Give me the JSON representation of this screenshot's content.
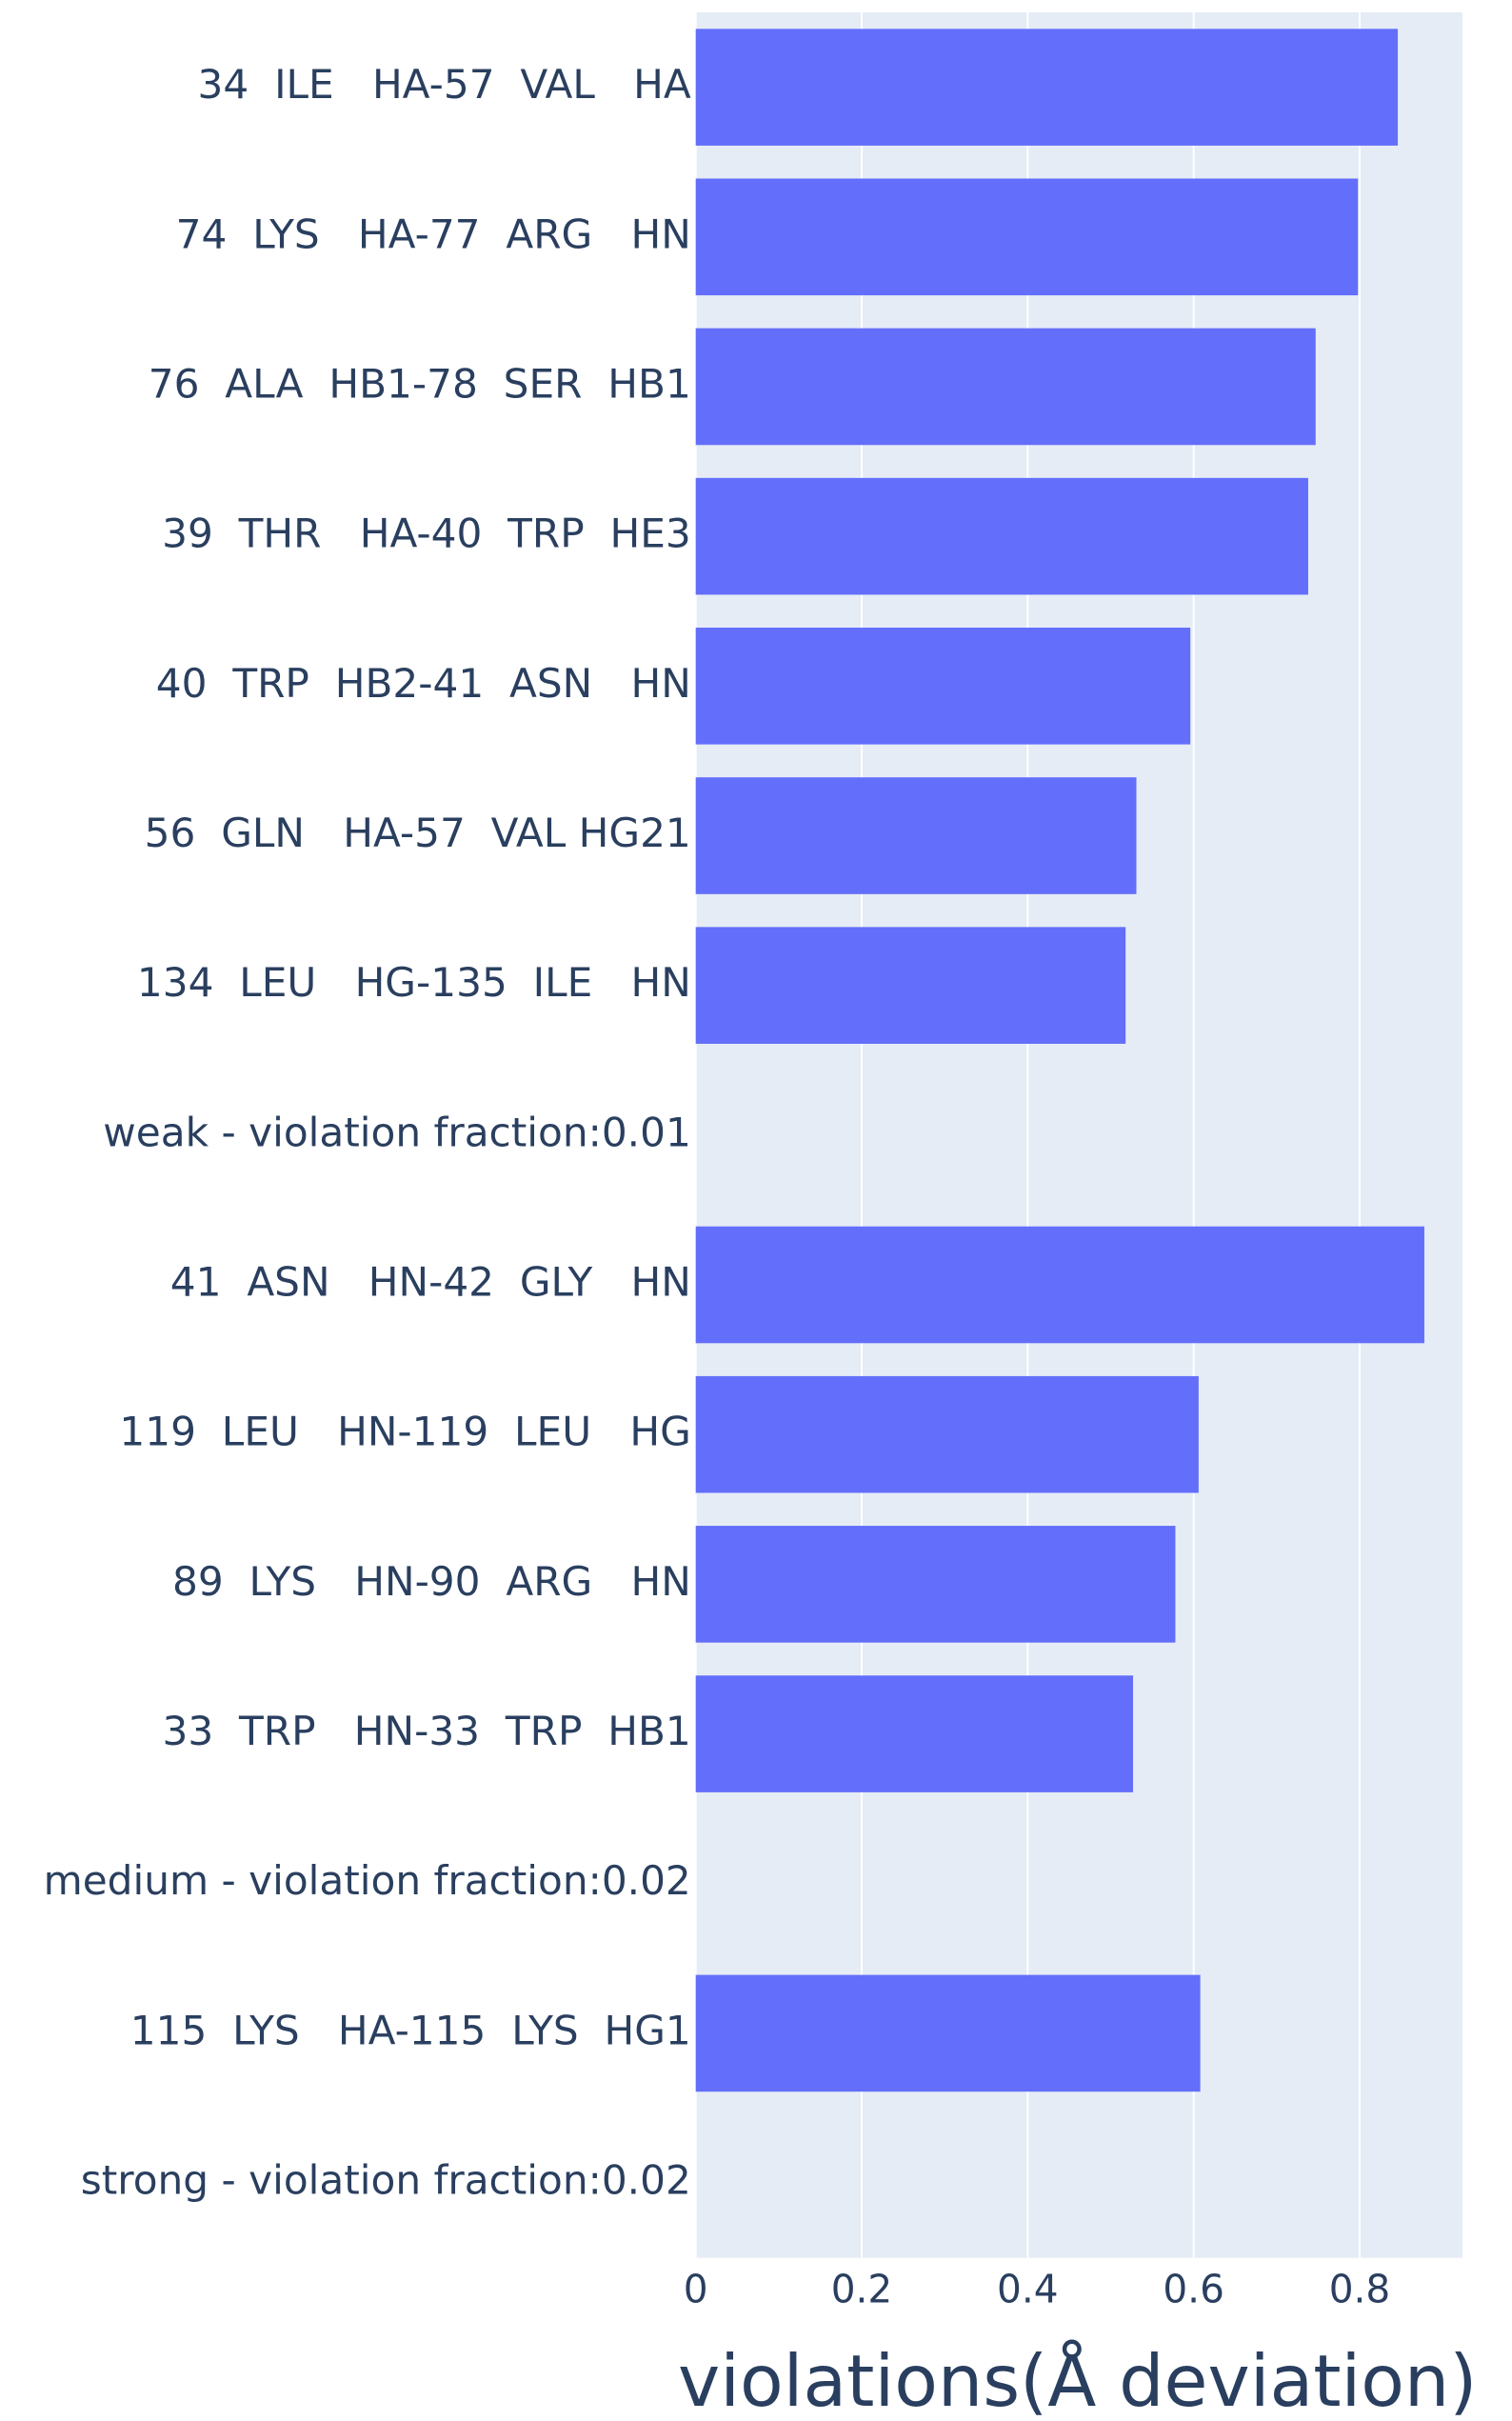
{
  "chart_data": {
    "type": "bar",
    "orientation": "horizontal",
    "x_label": "violations(Å deviation)",
    "categories": [
      "34  ILE   HA-57  VAL   HA",
      "74  LYS   HA-77  ARG   HN",
      "76  ALA  HB1-78  SER  HB1",
      "39  THR   HA-40  TRP  HE3",
      "40  TRP  HB2-41  ASN   HN",
      "56  GLN   HA-57  VAL HG21",
      "134  LEU   HG-135  ILE   HN",
      "weak - violation fraction:0.01",
      "41  ASN   HN-42  GLY   HN",
      "119  LEU   HN-119  LEU   HG",
      "89  LYS   HN-90  ARG   HN",
      "33  TRP   HN-33  TRP  HB1",
      "medium - violation fraction:0.02",
      "115  LYS   HA-115  LYS  HG1",
      "strong - violation fraction:0.02"
    ],
    "values": [
      0.846,
      0.798,
      0.747,
      0.738,
      0.596,
      0.531,
      0.518,
      null,
      0.878,
      0.606,
      0.578,
      0.527,
      null,
      0.608,
      null
    ],
    "color": "#636efa",
    "xlim": [
      0,
      0.924
    ],
    "xticks": [
      0,
      0.2,
      0.4,
      0.6,
      0.8
    ],
    "grid": true
  }
}
